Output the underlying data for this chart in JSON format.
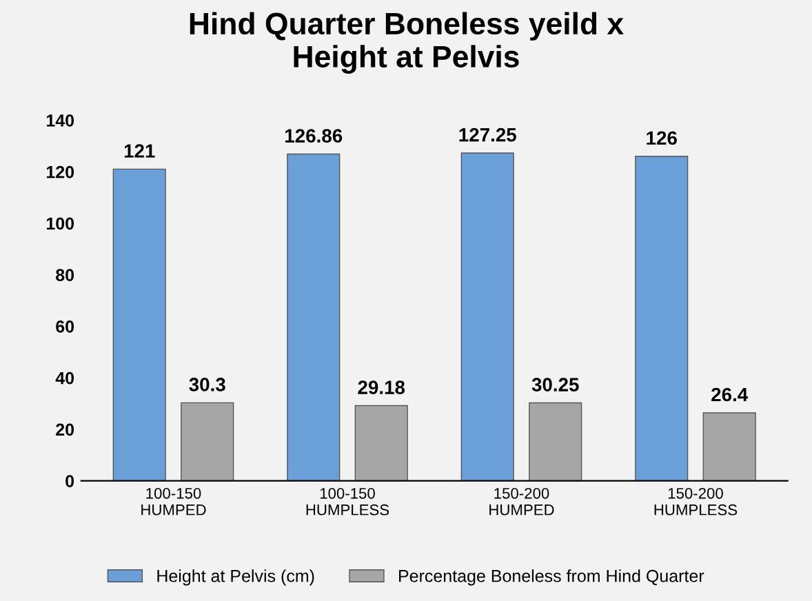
{
  "chart_data": {
    "type": "bar",
    "title": "Hind Quarter Boneless yeild x\nHeight at Pelvis",
    "categories": [
      "100-150\nHUMPED",
      "100-150\nHUMPLESS",
      "150-200\nHUMPED",
      "150-200\nHUMPLESS"
    ],
    "series": [
      {
        "name": "Height at Pelvis (cm)",
        "color": "#6a9fd8",
        "values": [
          121,
          126.86,
          127.25,
          126
        ]
      },
      {
        "name": "Percentage Boneless from Hind Quarter",
        "color": "#a6a6a6",
        "values": [
          30.3,
          29.18,
          30.25,
          26.4
        ]
      }
    ],
    "ylim": [
      0,
      140
    ],
    "yticks": [
      0,
      20,
      40,
      60,
      80,
      100,
      120,
      140
    ],
    "data_labels": true,
    "legend": "bottom",
    "grid": false
  }
}
